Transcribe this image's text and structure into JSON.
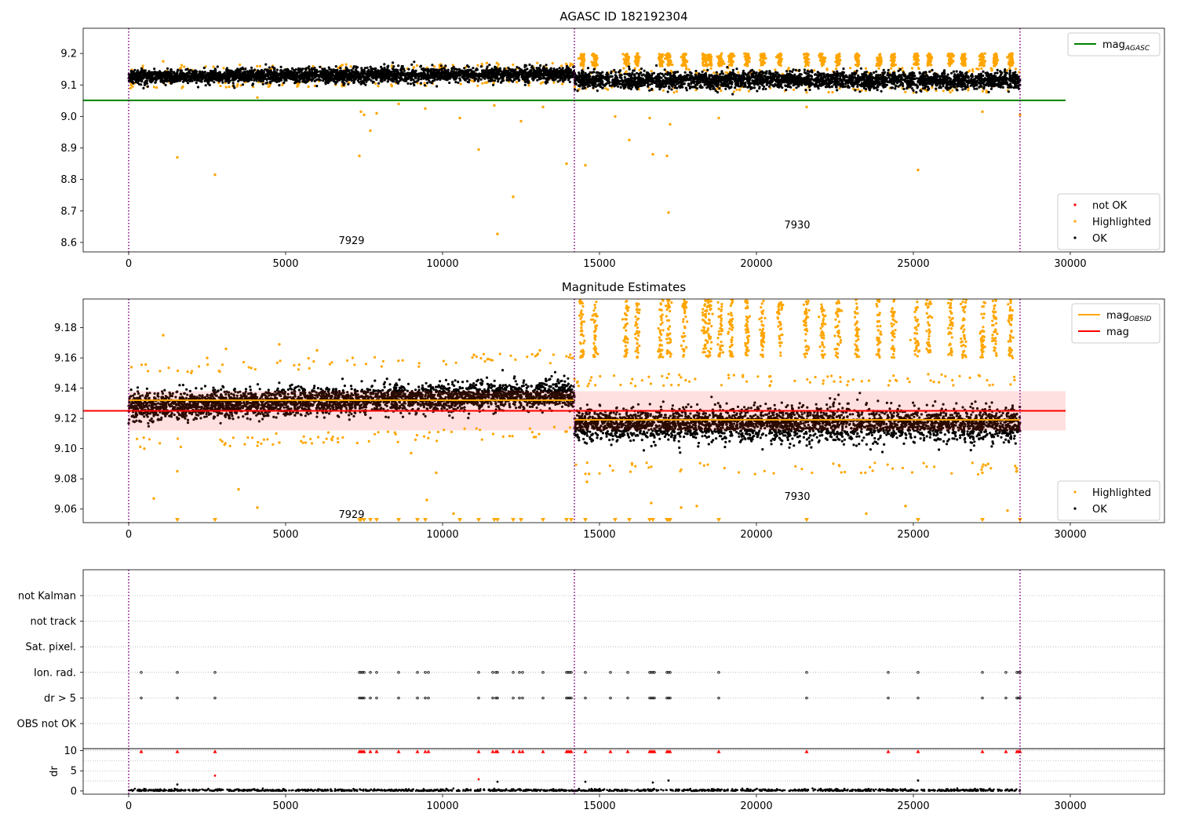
{
  "chart_data": [
    {
      "type": "scatter",
      "title": "AGASC ID 182192304",
      "xlim": [
        -1450,
        33000
      ],
      "ylim": [
        8.57,
        9.28
      ],
      "xticks": [
        0,
        5000,
        10000,
        15000,
        20000,
        25000,
        30000
      ],
      "yticks": [
        8.6,
        8.7,
        8.8,
        8.9,
        9.0,
        9.1,
        9.2
      ],
      "ytick_decimals": 1,
      "obsid_boundaries": [
        0,
        14200,
        28400
      ],
      "obsid_labels": [
        {
          "text": "7929",
          "x": 7100,
          "y": 8.595
        },
        {
          "text": "7930",
          "x": 21300,
          "y": 8.645
        }
      ],
      "reference_lines": [
        {
          "name": "mag",
          "subscript": "AGASC",
          "value": 9.051,
          "x_end": 29850,
          "color": "#008000"
        }
      ],
      "ok_segments": [
        {
          "x0": 0,
          "x1": 14200,
          "center0": 9.126,
          "center1": 9.135,
          "spread": 0.022,
          "n": 3200
        },
        {
          "x0": 14200,
          "x1": 28400,
          "center0": 9.115,
          "center1": 9.115,
          "spread": 0.026,
          "n": 3000
        }
      ],
      "highlighted_bursts": {
        "x": [
          14450,
          14850,
          15850,
          16200,
          16950,
          17200,
          17700,
          18350,
          18500,
          18850,
          19200,
          19700,
          20200,
          20750,
          21600,
          22100,
          22600,
          23200,
          23900,
          24350,
          25100,
          25500,
          26200,
          26600,
          27200,
          27600,
          28100
        ],
        "y_low": 9.16,
        "y_high": 9.2
      },
      "highlighted_outliers": [
        {
          "x": 1550,
          "y": 8.87
        },
        {
          "x": 2750,
          "y": 8.815
        },
        {
          "x": 7350,
          "y": 8.875
        },
        {
          "x": 7400,
          "y": 9.015
        },
        {
          "x": 7500,
          "y": 9.005
        },
        {
          "x": 7700,
          "y": 8.955
        },
        {
          "x": 7900,
          "y": 9.01
        },
        {
          "x": 8600,
          "y": 9.04
        },
        {
          "x": 9450,
          "y": 9.025
        },
        {
          "x": 10550,
          "y": 8.995
        },
        {
          "x": 11150,
          "y": 8.895
        },
        {
          "x": 11650,
          "y": 9.035
        },
        {
          "x": 11750,
          "y": 8.627
        },
        {
          "x": 12250,
          "y": 8.745
        },
        {
          "x": 12500,
          "y": 8.985
        },
        {
          "x": 13200,
          "y": 9.03
        },
        {
          "x": 13950,
          "y": 8.85
        },
        {
          "x": 14550,
          "y": 8.845
        },
        {
          "x": 15500,
          "y": 9.0
        },
        {
          "x": 15950,
          "y": 8.925
        },
        {
          "x": 16600,
          "y": 8.995
        },
        {
          "x": 16700,
          "y": 8.88
        },
        {
          "x": 17150,
          "y": 8.875
        },
        {
          "x": 17200,
          "y": 8.695
        },
        {
          "x": 17250,
          "y": 8.975
        },
        {
          "x": 18800,
          "y": 8.995
        },
        {
          "x": 21600,
          "y": 9.03
        },
        {
          "x": 25150,
          "y": 8.83
        },
        {
          "x": 27200,
          "y": 9.015
        },
        {
          "x": 28400,
          "y": 9.005
        },
        {
          "x": 1100,
          "y": 9.175
        },
        {
          "x": 4100,
          "y": 9.06
        }
      ],
      "legend_top": [
        {
          "label": "mag",
          "subscript": "AGASC",
          "kind": "line",
          "color": "#008000"
        }
      ],
      "legend_bottom": [
        {
          "label": "not OK",
          "kind": "dot",
          "color": "#ff0000"
        },
        {
          "label": "Highlighted",
          "kind": "dot",
          "color": "#ffa500"
        },
        {
          "label": "OK",
          "kind": "dot",
          "color": "#000000"
        }
      ]
    },
    {
      "type": "scatter",
      "title": "Magnitude Estimates",
      "xlim": [
        -1450,
        33000
      ],
      "ylim": [
        9.051,
        9.199
      ],
      "xticks": [
        0,
        5000,
        10000,
        15000,
        20000,
        25000,
        30000
      ],
      "yticks": [
        9.06,
        9.08,
        9.1,
        9.12,
        9.14,
        9.16,
        9.18
      ],
      "ytick_decimals": 2,
      "obsid_boundaries": [
        0,
        14200,
        28400
      ],
      "obsid_labels": [
        {
          "text": "7929",
          "x": 7100,
          "y": 9.054
        },
        {
          "text": "7930",
          "x": 21300,
          "y": 9.066
        }
      ],
      "band": {
        "x0": 0,
        "x1": 29850,
        "y0": 9.112,
        "y1": 9.138,
        "color": "#ff9999"
      },
      "reference_lines": [
        {
          "name": "mag",
          "subscript": "OBSID",
          "value": 9.132,
          "x0": 0,
          "x_end": 14200,
          "color": "#ffa500"
        },
        {
          "name": "mag",
          "subscript": "OBSID",
          "value": 9.119,
          "x0": 14200,
          "x_end": 28400,
          "color": "#ffa500"
        },
        {
          "name": "mag",
          "value": 9.125,
          "x0": -1450,
          "x_end": 29850,
          "color": "#ff0000"
        }
      ],
      "ok_segments": [
        {
          "x0": 0,
          "x1": 14200,
          "center0": 9.128,
          "center1": 9.136,
          "spread": 0.009,
          "n": 3200
        },
        {
          "x0": 14200,
          "x1": 28400,
          "center0": 9.116,
          "center1": 9.116,
          "spread": 0.011,
          "n": 3000
        }
      ],
      "highlighted_bursts": {
        "x": [
          14450,
          14850,
          15850,
          16200,
          16950,
          17200,
          17700,
          18350,
          18500,
          18850,
          19200,
          19700,
          20200,
          20750,
          21600,
          22100,
          22600,
          23200,
          23900,
          24350,
          25100,
          25500,
          26200,
          26600,
          27200,
          27600,
          28100
        ],
        "y_low": 9.16,
        "y_high": 9.2
      },
      "clipped_markers_x": [
        1550,
        2750,
        7350,
        7400,
        7500,
        7700,
        7900,
        8600,
        9200,
        9450,
        10550,
        11150,
        11650,
        11750,
        12250,
        12500,
        13200,
        13950,
        14100,
        14550,
        15500,
        15950,
        16600,
        16700,
        17150,
        17200,
        17250,
        18800,
        21600,
        25150,
        27200,
        28400
      ],
      "clipped_y": 9.0525,
      "highlighted_outliers": [
        {
          "x": 500,
          "y": 9.1
        },
        {
          "x": 800,
          "y": 9.067
        },
        {
          "x": 1100,
          "y": 9.175
        },
        {
          "x": 1550,
          "y": 9.085
        },
        {
          "x": 3500,
          "y": 9.073
        },
        {
          "x": 4100,
          "y": 9.061
        },
        {
          "x": 4800,
          "y": 9.104
        },
        {
          "x": 6000,
          "y": 9.165
        },
        {
          "x": 9000,
          "y": 9.097
        },
        {
          "x": 9500,
          "y": 9.066
        },
        {
          "x": 9800,
          "y": 9.084
        },
        {
          "x": 10350,
          "y": 9.057
        },
        {
          "x": 14600,
          "y": 9.078
        },
        {
          "x": 16650,
          "y": 9.064
        },
        {
          "x": 17600,
          "y": 9.061
        },
        {
          "x": 18100,
          "y": 9.062
        },
        {
          "x": 23500,
          "y": 9.057
        },
        {
          "x": 24750,
          "y": 9.062
        },
        {
          "x": 27200,
          "y": 9.084
        },
        {
          "x": 28000,
          "y": 9.059
        },
        {
          "x": 28300,
          "y": 9.085
        },
        {
          "x": 2500,
          "y": 9.16
        },
        {
          "x": 3100,
          "y": 9.166
        },
        {
          "x": 4800,
          "y": 9.169
        },
        {
          "x": 11000,
          "y": 9.162
        },
        {
          "x": 13100,
          "y": 9.165
        }
      ],
      "legend_top": [
        {
          "label": "mag",
          "subscript": "OBSID",
          "kind": "line",
          "color": "#ffa500"
        },
        {
          "label": "mag",
          "kind": "line",
          "color": "#ff0000"
        }
      ],
      "legend_bottom": [
        {
          "label": "Highlighted",
          "kind": "dot",
          "color": "#ffa500"
        },
        {
          "label": "OK",
          "kind": "dot",
          "color": "#000000"
        }
      ]
    },
    {
      "type": "scatter",
      "title": "",
      "xlim": [
        -1450,
        33000
      ],
      "category_rows": [
        "not Kalman",
        "not track",
        "Sat. pixel.",
        "Ion. rad.",
        "dr > 5",
        "OBS not OK"
      ],
      "flag_x": [
        400,
        1550,
        2750,
        7350,
        7400,
        7450,
        7500,
        7700,
        7900,
        8600,
        9200,
        9450,
        9550,
        11150,
        11600,
        11700,
        11750,
        12250,
        12450,
        12550,
        13200,
        13950,
        14000,
        14050,
        14100,
        14550,
        15350,
        15900,
        16600,
        16650,
        16700,
        16750,
        17150,
        17200,
        17250,
        18800,
        21600,
        24200,
        25150,
        27200,
        27950,
        28300,
        28350,
        28400
      ],
      "flag_rows": [
        "Ion. rad.",
        "dr > 5"
      ],
      "obsid_boundaries": [
        0,
        14200,
        28400
      ]
    },
    {
      "type": "scatter",
      "title": "",
      "ylabel": "dr",
      "xlim": [
        -1450,
        33000
      ],
      "ylim": [
        -0.8,
        10.5
      ],
      "xticks": [
        0,
        5000,
        10000,
        15000,
        20000,
        25000,
        30000
      ],
      "yticks": [
        0,
        5,
        10
      ],
      "ytick_decimals": 0,
      "obsid_boundaries": [
        0,
        14200,
        28400
      ],
      "clipped_dr_x": [
        400,
        1550,
        2750,
        7350,
        7400,
        7450,
        7500,
        7700,
        7900,
        8600,
        9200,
        9450,
        9550,
        11150,
        11600,
        11700,
        11750,
        12250,
        12450,
        12550,
        13200,
        13950,
        14000,
        14050,
        14100,
        14550,
        15350,
        15900,
        16600,
        16650,
        16700,
        16750,
        17150,
        17200,
        17250,
        18800,
        21600,
        24200,
        25150,
        27200,
        27950,
        28300,
        28350,
        28400
      ],
      "clipped_dr_y": 9.8,
      "outliers": [
        {
          "x": 2750,
          "y": 3.8,
          "color": "#ff0000"
        },
        {
          "x": 11150,
          "y": 2.9,
          "color": "#ff0000"
        },
        {
          "x": 11750,
          "y": 2.3,
          "color": "#000000"
        },
        {
          "x": 14550,
          "y": 2.3,
          "color": "#000000"
        },
        {
          "x": 16700,
          "y": 2.1,
          "color": "#000000"
        },
        {
          "x": 17200,
          "y": 2.6,
          "color": "#000000"
        },
        {
          "x": 25150,
          "y": 2.6,
          "color": "#000000"
        },
        {
          "x": 1550,
          "y": 1.6,
          "color": "#000000"
        }
      ]
    }
  ]
}
